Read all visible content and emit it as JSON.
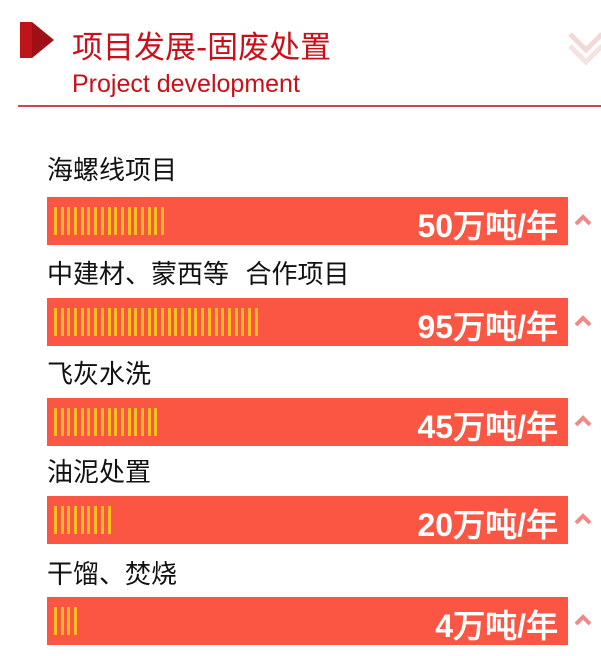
{
  "header": {
    "title": "项目发展-固废处置",
    "subtitle": "Project development"
  },
  "colors": {
    "accent": "#c8101a",
    "bar": "#fb5544",
    "stripe": "#f8bf1e"
  },
  "projects": [
    {
      "name": "海螺线项目",
      "value": "50万吨/年",
      "stripes": 17
    },
    {
      "name": "中建材、蒙西等  合作项目",
      "value": "95万吨/年",
      "stripes": 31
    },
    {
      "name": "飞灰水洗",
      "value": "45万吨/年",
      "stripes": 16
    },
    {
      "name": "油泥处置",
      "value": "20万吨/年",
      "stripes": 9
    },
    {
      "name": "干馏、焚烧",
      "value": "4万吨/年",
      "stripes": 4
    }
  ]
}
